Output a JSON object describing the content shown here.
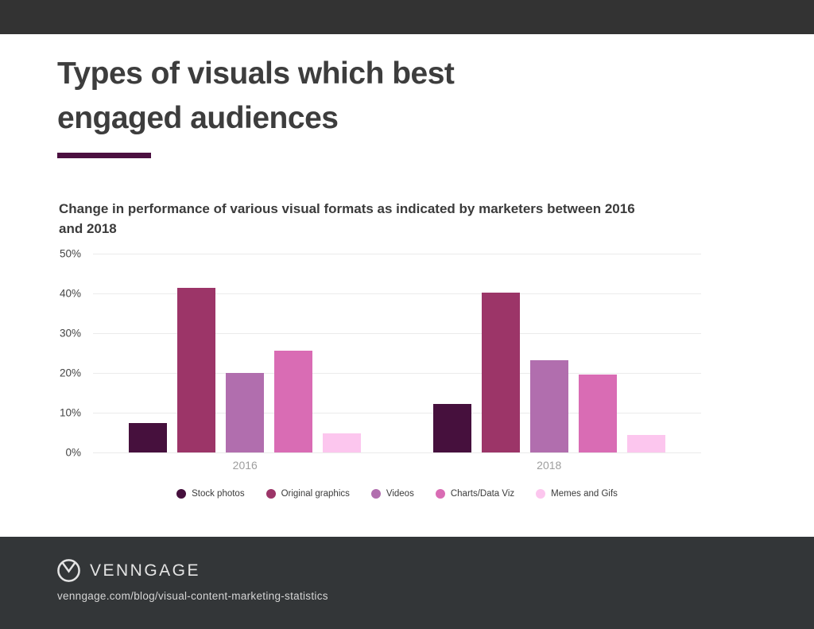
{
  "title": {
    "line1": "Types of visuals which best",
    "line2": "engaged audiences"
  },
  "subtitle": {
    "line1": "Change in performance of various visual formats as indicated by marketers between 2016",
    "line2": "and 2018"
  },
  "chart_data": {
    "type": "bar",
    "title": "Change in performance of various visual formats as indicated by marketers between 2016 and 2018",
    "categories": [
      "2016",
      "2018"
    ],
    "series": [
      {
        "name": "Stock photos",
        "color": "#46103d",
        "values": [
          7.5,
          12.3
        ]
      },
      {
        "name": "Original graphics",
        "color": "#9c3568",
        "values": [
          41.5,
          40.2
        ]
      },
      {
        "name": "Videos",
        "color": "#b16eae",
        "values": [
          20.1,
          23.2
        ]
      },
      {
        "name": "Charts/Data Viz",
        "color": "#d96cb4",
        "values": [
          25.7,
          19.6
        ]
      },
      {
        "name": "Memes and Gifs",
        "color": "#fcc6ee",
        "values": [
          4.9,
          4.4
        ]
      }
    ],
    "xlabel": "",
    "ylabel": "",
    "ylim": [
      0,
      50
    ],
    "y_ticks": [
      0,
      10,
      20,
      30,
      40,
      50
    ],
    "tick_suffix": "%",
    "grid": true,
    "legend_position": "bottom"
  },
  "colors": {
    "top_bar": "#333333",
    "footer": "#333638",
    "heading_text": "#3d3d3d",
    "title_underline": "#4b1040",
    "gridline": "#ebebeb",
    "axis_tick_text": "#444444",
    "category_text": "#9e9e9e"
  },
  "footer": {
    "brand": "VENNGAGE",
    "logo_icon": "venngage-circle-v-icon",
    "url": "venngage.com/blog/visual-content-marketing-statistics"
  }
}
